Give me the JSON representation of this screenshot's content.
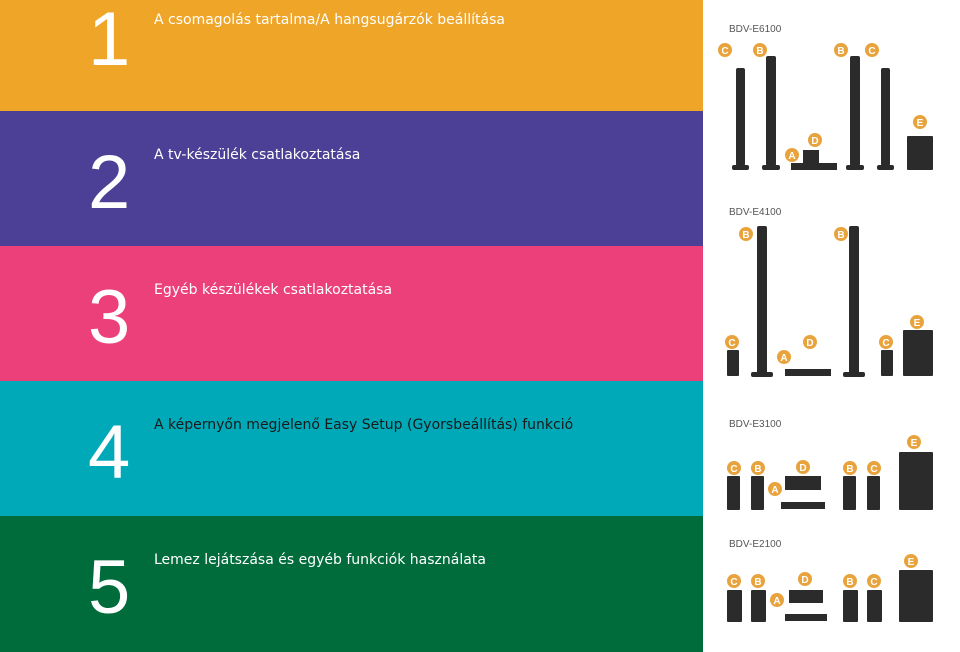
{
  "sections": [
    {
      "number": "1",
      "title": "A csomagolás tartalma/A hangsugárzók beállítása",
      "color": "#efa528",
      "num_color": "#ffffff",
      "title_color": "#ffffff"
    },
    {
      "number": "2",
      "title": "A tv-készülék csatlakoztatása",
      "color": "#4b3f96",
      "num_color": "#ffffff",
      "title_color": "#ffffff"
    },
    {
      "number": "3",
      "title": "Egyéb készülékek csatlakoztatása",
      "color": "#ec407a",
      "num_color": "#ffffff",
      "title_color": "#ffffff"
    },
    {
      "number": "4",
      "title": "A képernyőn megjelenő Easy Setup (Gyorsbeállítás) funkció",
      "color": "#00a9b8",
      "num_color": "#ffffff",
      "title_color": "#1a1a1a"
    },
    {
      "number": "5",
      "title": "Lemez lejátszása és egyéb funkciók használata",
      "color": "#006b3b",
      "num_color": "#ffffff",
      "title_color": "#ffffff"
    }
  ],
  "products": [
    {
      "model": "BDV-E6100"
    },
    {
      "model": "BDV-E4100"
    },
    {
      "model": "BDV-E3100"
    },
    {
      "model": "BDV-E2100"
    }
  ],
  "badge_color": "#e8a33d",
  "badges": {
    "a": "A",
    "b": "B",
    "c": "C",
    "d": "D",
    "e": "E"
  }
}
